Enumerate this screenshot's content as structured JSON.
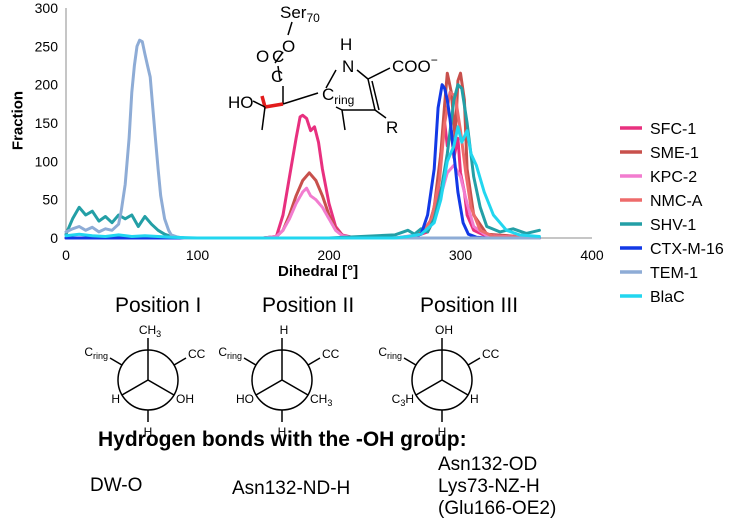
{
  "chart_data": {
    "type": "line",
    "xlabel": "Dihedral [°]",
    "ylabel": "Fraction",
    "xlim": [
      0,
      400
    ],
    "ylim": [
      0,
      300
    ],
    "x_ticks": [
      0,
      100,
      200,
      300,
      400
    ],
    "y_ticks": [
      0,
      50,
      100,
      150,
      200,
      250,
      300
    ],
    "grid": false,
    "legend_position": "right",
    "series": [
      {
        "name": "SFC-1",
        "color": "#e8307f",
        "x": [
          0,
          150,
          160,
          165,
          170,
          175,
          178,
          180,
          183,
          186,
          189,
          192,
          195,
          200,
          205,
          210,
          220,
          250,
          265,
          275,
          280,
          283,
          285,
          288,
          290,
          293,
          295,
          298,
          300,
          303,
          305,
          310,
          320,
          360
        ],
        "y": [
          0,
          0,
          2,
          30,
          80,
          130,
          158,
          160,
          156,
          140,
          145,
          125,
          90,
          45,
          15,
          4,
          0,
          0,
          2,
          8,
          25,
          60,
          110,
          150,
          120,
          140,
          105,
          130,
          85,
          60,
          30,
          10,
          2,
          0
        ]
      },
      {
        "name": "SME-1",
        "color": "#c8504c",
        "x": [
          0,
          150,
          160,
          165,
          170,
          175,
          180,
          185,
          190,
          195,
          200,
          205,
          210,
          220,
          250,
          265,
          275,
          280,
          285,
          288,
          290,
          293,
          296,
          298,
          300,
          303,
          305,
          310,
          320,
          360
        ],
        "y": [
          0,
          0,
          2,
          10,
          30,
          55,
          75,
          85,
          75,
          55,
          30,
          12,
          3,
          0,
          0,
          3,
          10,
          40,
          110,
          175,
          215,
          190,
          130,
          205,
          215,
          180,
          90,
          30,
          5,
          0
        ]
      },
      {
        "name": "KPC-2",
        "color": "#f27ccf",
        "x": [
          0,
          150,
          160,
          165,
          170,
          175,
          180,
          183,
          186,
          190,
          195,
          200,
          205,
          210,
          220,
          250,
          270,
          280,
          285,
          290,
          295,
          300,
          305,
          310,
          320,
          360
        ],
        "y": [
          0,
          0,
          2,
          10,
          25,
          45,
          60,
          65,
          55,
          50,
          40,
          25,
          10,
          3,
          0,
          0,
          5,
          25,
          55,
          85,
          95,
          80,
          45,
          15,
          3,
          0
        ],
        "dash": true
      },
      {
        "name": "NMC-A",
        "color": "#ee6b6b",
        "x": [
          0,
          260,
          270,
          278,
          284,
          288,
          292,
          296,
          300,
          304,
          308,
          315,
          325,
          360
        ],
        "y": [
          0,
          0,
          5,
          25,
          75,
          150,
          190,
          185,
          140,
          85,
          40,
          10,
          2,
          0
        ]
      },
      {
        "name": "SHV-1",
        "color": "#239fa6",
        "x": [
          0,
          5,
          10,
          15,
          20,
          25,
          30,
          35,
          40,
          45,
          50,
          55,
          60,
          65,
          70,
          75,
          80,
          90,
          200,
          250,
          260,
          265,
          270,
          275,
          280,
          285,
          290,
          295,
          298,
          301,
          305,
          310,
          315,
          320,
          330,
          340,
          350,
          360
        ],
        "y": [
          5,
          25,
          40,
          30,
          35,
          22,
          28,
          20,
          30,
          25,
          30,
          15,
          28,
          18,
          10,
          5,
          2,
          0,
          0,
          4,
          10,
          5,
          12,
          8,
          25,
          60,
          110,
          180,
          200,
          195,
          150,
          80,
          40,
          15,
          8,
          12,
          6,
          10
        ]
      },
      {
        "name": "CTX-M-16",
        "color": "#1239e6",
        "x": [
          0,
          260,
          270,
          275,
          280,
          283,
          286,
          288,
          290,
          292,
          295,
          298,
          302,
          306,
          312,
          320,
          360
        ],
        "y": [
          0,
          0,
          5,
          30,
          90,
          170,
          200,
          195,
          180,
          155,
          110,
          60,
          20,
          5,
          1,
          0,
          0
        ]
      },
      {
        "name": "TEM-1",
        "color": "#8eacd6",
        "x": [
          0,
          5,
          10,
          15,
          20,
          25,
          30,
          35,
          40,
          42,
          45,
          48,
          50,
          52,
          54,
          56,
          58,
          60,
          62,
          64,
          66,
          68,
          70,
          72,
          75,
          78,
          80,
          85,
          90,
          360
        ],
        "y": [
          8,
          12,
          15,
          10,
          14,
          8,
          12,
          10,
          18,
          35,
          70,
          130,
          190,
          225,
          250,
          258,
          256,
          240,
          225,
          210,
          170,
          130,
          90,
          55,
          25,
          10,
          4,
          1,
          0,
          0
        ]
      },
      {
        "name": "BlaC",
        "color": "#22d6ef",
        "x": [
          0,
          10,
          20,
          30,
          40,
          50,
          60,
          70,
          80,
          100,
          250,
          260,
          270,
          280,
          285,
          290,
          295,
          298,
          301,
          305,
          308,
          312,
          318,
          325,
          335,
          345,
          360
        ],
        "y": [
          3,
          5,
          3,
          2,
          4,
          2,
          3,
          2,
          1,
          0,
          0,
          2,
          5,
          20,
          50,
          100,
          120,
          145,
          125,
          140,
          110,
          95,
          60,
          30,
          10,
          4,
          2
        ]
      }
    ]
  },
  "structure": {
    "ser": "Ser",
    "ser_sub": "70",
    "oxygen": "O",
    "cc": "C",
    "cc2": "C",
    "nh": "H",
    "n": "N",
    "coo": "COO",
    "coo_sup": "−",
    "ho": "HO",
    "c": "C",
    "ring_sub": "ring",
    "r": "R"
  },
  "positions": [
    {
      "title": "Position I",
      "top": "CH",
      "top_sub": "3",
      "left": "C",
      "left_sub": "ring",
      "right": "CC",
      "bl": "H",
      "br": "OH",
      "bottom": "H"
    },
    {
      "title": "Position II",
      "top": "H",
      "top_sub": "",
      "left": "C",
      "left_sub": "ring",
      "right": "CC",
      "bl": "HO",
      "br": "CH",
      "br_sub": "3",
      "bottom": "H"
    },
    {
      "title": "Position III",
      "top": "OH",
      "top_sub": "",
      "left": "C",
      "left_sub": "ring",
      "right": "CC",
      "bl": "H",
      "bl_pre": "C",
      "bl_sub": "3",
      "br": "H",
      "bottom": "H"
    }
  ],
  "hbonds": {
    "title": "Hydrogen bonds with the -OH group:",
    "items": [
      {
        "lines": [
          "DW-O"
        ]
      },
      {
        "lines": [
          "Asn132-ND-H"
        ]
      },
      {
        "lines": [
          "Asn132-OD",
          "Lys73-NZ-H",
          "(Glu166-OE2)"
        ]
      }
    ]
  }
}
